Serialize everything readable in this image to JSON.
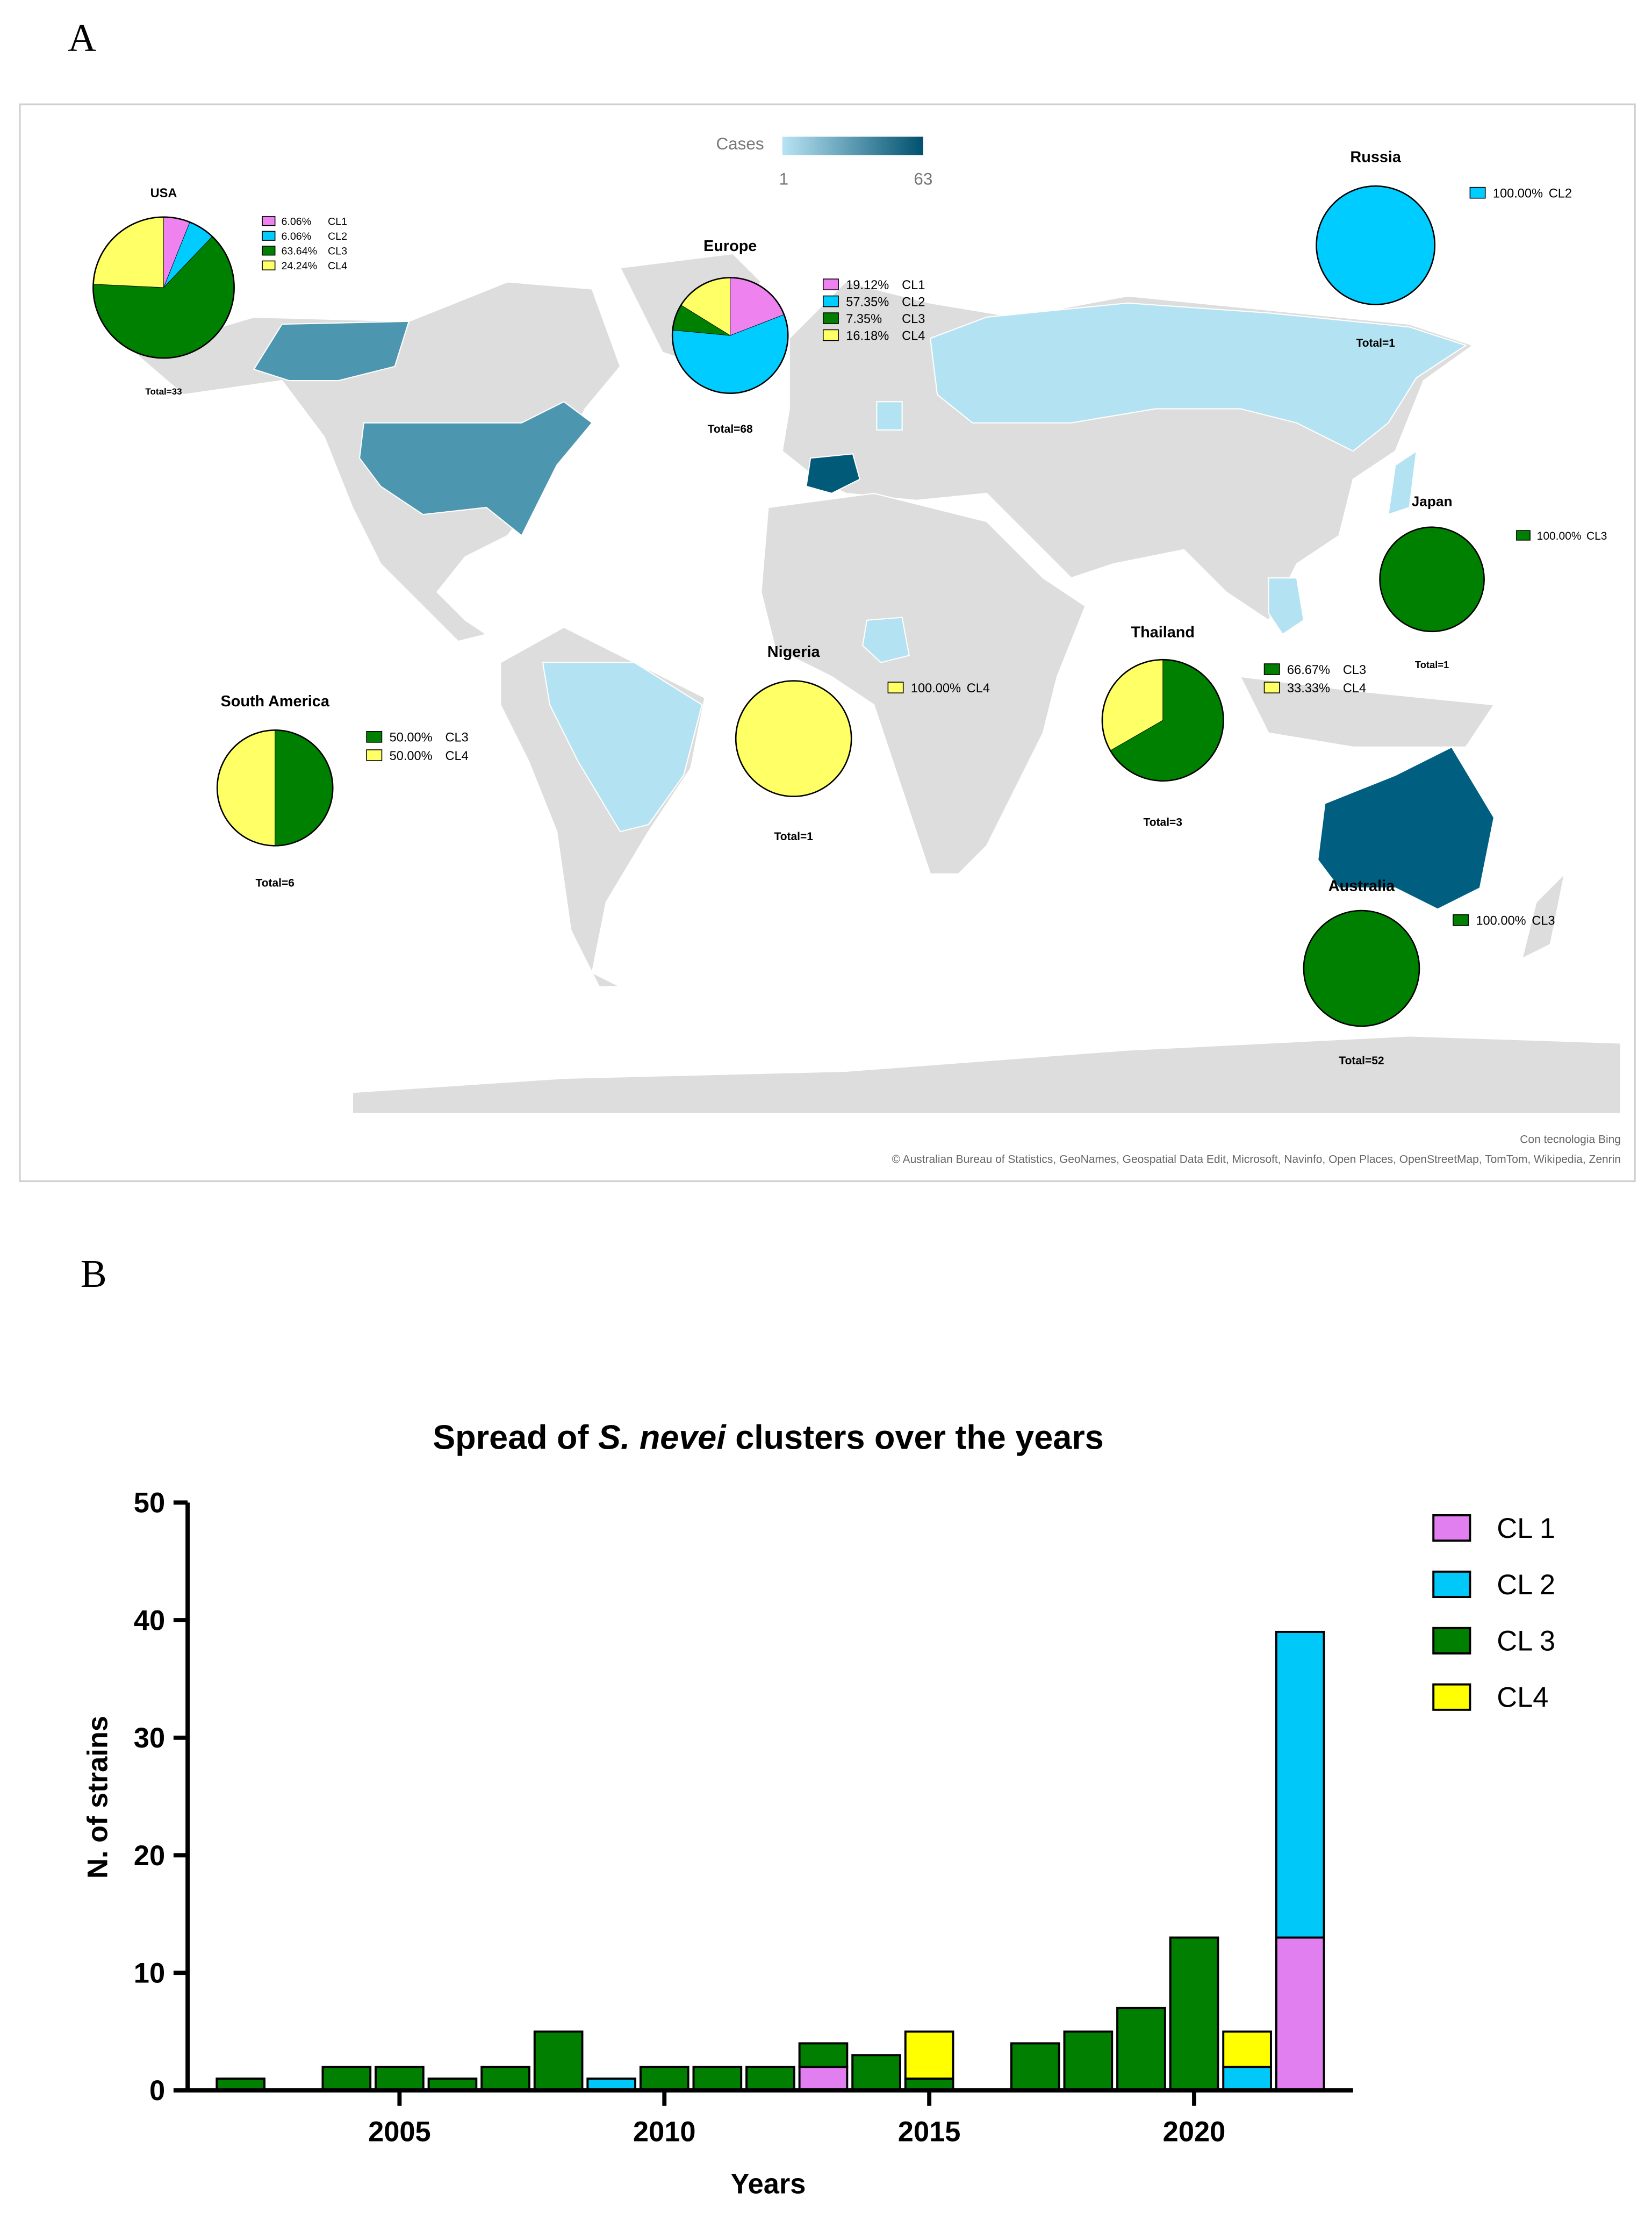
{
  "panel_labels": [
    "A",
    "B"
  ],
  "map": {
    "legend_title": "Cases",
    "legend_min": 1,
    "legend_max": 63,
    "legend_colors": [
      "#b8e4f4",
      "#00506e"
    ],
    "credits": [
      "Con tecnologia Bing",
      "© Australian Bureau of Statistics, GeoNames, Geospatial Data Edit, Microsoft, Navinfo, Open Places, OpenStreetMap, TomTom, Wikipedia, Zenrin"
    ]
  },
  "chart_data": [
    {
      "type": "pie",
      "title": "USA",
      "total": "Total=33",
      "categories": [
        "CL1",
        "CL2",
        "CL3",
        "CL4"
      ],
      "values": [
        6.06,
        6.06,
        63.64,
        24.24
      ],
      "value_labels": [
        "6.06%",
        "6.06%",
        "63.64%",
        "24.24%"
      ],
      "colors": [
        "#ee82ee",
        "#00ccff",
        "#008000",
        "#ffff66"
      ]
    },
    {
      "type": "pie",
      "title": "Europe",
      "total": "Total=68",
      "categories": [
        "CL1",
        "CL2",
        "CL3",
        "CL4"
      ],
      "values": [
        19.12,
        57.35,
        7.35,
        16.18
      ],
      "value_labels": [
        "19.12%",
        "57.35%",
        "7.35%",
        "16.18%"
      ],
      "colors": [
        "#ee82ee",
        "#00ccff",
        "#008000",
        "#ffff66"
      ]
    },
    {
      "type": "pie",
      "title": "Russia",
      "total": "Total=1",
      "categories": [
        "CL2"
      ],
      "values": [
        100
      ],
      "value_labels": [
        "100.00%"
      ],
      "colors": [
        "#00ccff"
      ]
    },
    {
      "type": "pie",
      "title": "Japan",
      "total": "Total=1",
      "categories": [
        "CL3"
      ],
      "values": [
        100
      ],
      "value_labels": [
        "100.00%"
      ],
      "colors": [
        "#008000"
      ]
    },
    {
      "type": "pie",
      "title": "South America",
      "total": "Total=6",
      "categories": [
        "CL3",
        "CL4"
      ],
      "values": [
        50,
        50
      ],
      "value_labels": [
        "50.00%",
        "50.00%"
      ],
      "colors": [
        "#008000",
        "#ffff66"
      ]
    },
    {
      "type": "pie",
      "title": "Nigeria",
      "total": "Total=1",
      "categories": [
        "CL4"
      ],
      "values": [
        100
      ],
      "value_labels": [
        "100.00%"
      ],
      "colors": [
        "#ffff66"
      ]
    },
    {
      "type": "pie",
      "title": "Thailand",
      "total": "Total=3",
      "categories": [
        "CL3",
        "CL4"
      ],
      "values": [
        66.67,
        33.33
      ],
      "value_labels": [
        "66.67%",
        "33.33%"
      ],
      "colors": [
        "#008000",
        "#ffff66"
      ]
    },
    {
      "type": "pie",
      "title": "Australia",
      "total": "Total=52",
      "categories": [
        "CL3"
      ],
      "values": [
        100
      ],
      "value_labels": [
        "100.00%"
      ],
      "colors": [
        "#008000"
      ]
    },
    {
      "type": "bar",
      "stacked": true,
      "title_parts": [
        "Spread of ",
        "S. nevei",
        " clusters over the years"
      ],
      "x_label": "Years",
      "y_label": "N. of strains",
      "x": [
        2002,
        2004,
        2005,
        2006,
        2007,
        2008,
        2009,
        2010,
        2011,
        2012,
        2013,
        2014,
        2015,
        2017,
        2018,
        2019,
        2020,
        2021,
        2022
      ],
      "series": [
        {
          "name": "CL 1",
          "color": "#e27ff0",
          "values": [
            0,
            0,
            0,
            0,
            0,
            0,
            0,
            0,
            0,
            0,
            2,
            0,
            0,
            0,
            0,
            0,
            0,
            0,
            13
          ]
        },
        {
          "name": "CL 2",
          "color": "#00c8f8",
          "values": [
            0,
            0,
            0,
            0,
            0,
            0,
            1,
            0,
            0,
            0,
            0,
            0,
            0,
            0,
            0,
            0,
            0,
            2,
            26
          ]
        },
        {
          "name": "CL 3",
          "color": "#007f00",
          "values": [
            1,
            2,
            2,
            1,
            2,
            5,
            0,
            2,
            2,
            2,
            2,
            3,
            1,
            4,
            5,
            7,
            13,
            0,
            0
          ]
        },
        {
          "name": "CL4",
          "color": "#ffff00",
          "values": [
            0,
            0,
            0,
            0,
            0,
            0,
            0,
            0,
            0,
            0,
            0,
            0,
            4,
            0,
            0,
            0,
            0,
            3,
            0
          ]
        }
      ],
      "xlim": [
        2001,
        2023
      ],
      "xticks": [
        2005,
        2010,
        2015,
        2020
      ],
      "ylim": [
        0,
        50
      ],
      "yticks": [
        0,
        10,
        20,
        30,
        40,
        50
      ]
    }
  ]
}
